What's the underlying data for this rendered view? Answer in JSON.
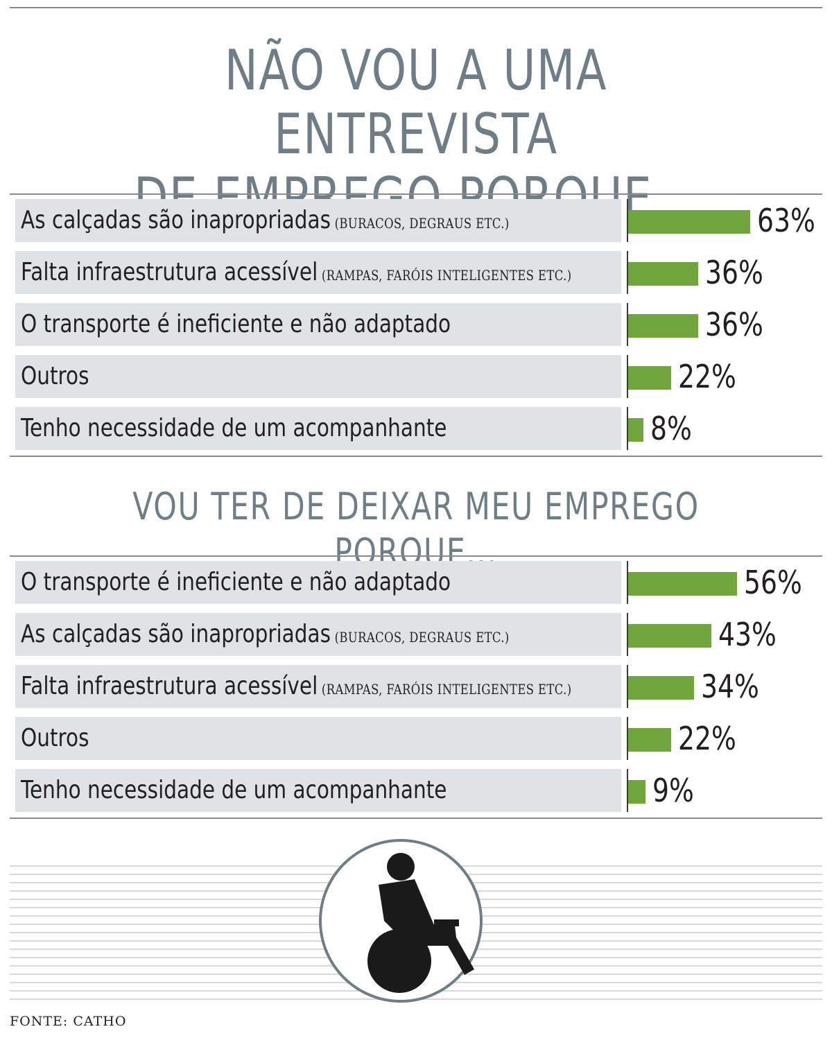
{
  "chart_data": [
    {
      "type": "bar",
      "orientation": "horizontal",
      "title": "NÃO VOU A UMA ENTREVISTA DE EMPREGO PORQUE...",
      "title_lines": [
        "NÃO VOU A UMA ENTREVISTA",
        "DE EMPREGO PORQUE..."
      ],
      "categories": [
        {
          "label": "As calçadas são inapropriadas",
          "note": "(BURACOS, DEGRAUS ETC.)"
        },
        {
          "label": "Falta infraestrutura acessível",
          "note": "(RAMPAS, FARÓIS INTELIGENTES ETC.)"
        },
        {
          "label": "O transporte é ineficiente e não adaptado",
          "note": ""
        },
        {
          "label": "Outros",
          "note": ""
        },
        {
          "label": "Tenho necessidade de um acompanhante",
          "note": ""
        }
      ],
      "values": [
        63,
        36,
        36,
        22,
        8
      ],
      "value_labels": [
        "63%",
        "36%",
        "36%",
        "22%",
        "8%"
      ],
      "unit": "%"
    },
    {
      "type": "bar",
      "orientation": "horizontal",
      "title": "VOU TER DE DEIXAR MEU EMPREGO PORQUE...",
      "categories": [
        {
          "label": "O transporte é ineficiente e não adaptado",
          "note": ""
        },
        {
          "label": "As calçadas são inapropriadas",
          "note": "(BURACOS, DEGRAUS ETC.)"
        },
        {
          "label": "Falta infraestrutura acessível",
          "note": "(RAMPAS, FARÓIS INTELIGENTES ETC.)"
        },
        {
          "label": "Outros",
          "note": ""
        },
        {
          "label": "Tenho necessidade de um acompanhante",
          "note": ""
        }
      ],
      "values": [
        56,
        43,
        34,
        22,
        9
      ],
      "value_labels": [
        "56%",
        "43%",
        "34%",
        "22%",
        "9%"
      ],
      "unit": "%"
    }
  ],
  "colors": {
    "bar": "#6fa53a",
    "title": "#6f7e86",
    "label_bg": "#dfe3e5"
  },
  "icon": "wheelchair-icon",
  "source": "FONTE: CATHO"
}
